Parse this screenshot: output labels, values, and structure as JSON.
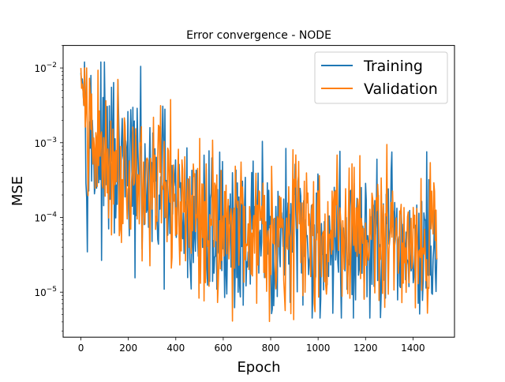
{
  "chart_data": {
    "type": "line",
    "title": "Error convergence - NODE",
    "xlabel": "Epoch",
    "ylabel": "MSE",
    "xlim": [
      -75,
      1575
    ],
    "ylim": [
      2.5e-06,
      0.02
    ],
    "yscale": "log",
    "xticks": [
      0,
      200,
      400,
      600,
      800,
      1000,
      1200,
      1400
    ],
    "xtick_labels": [
      "0",
      "200",
      "400",
      "600",
      "800",
      "1000",
      "1200",
      "1400"
    ],
    "yticks": [
      1e-05,
      0.0001,
      0.001,
      0.01
    ],
    "ytick_labels": [
      {
        "base": "10",
        "exp": "−5"
      },
      {
        "base": "10",
        "exp": "−4"
      },
      {
        "base": "10",
        "exp": "−3"
      },
      {
        "base": "10",
        "exp": "−2"
      }
    ],
    "grid": false,
    "legend_position": "top-right",
    "series": [
      {
        "name": "Training",
        "color": "#1f77b4",
        "trend": {
          "x": [
            0,
            10,
            20,
            30,
            50,
            100,
            150,
            200,
            250,
            300,
            350,
            400,
            450,
            500,
            600,
            700,
            800,
            900,
            1000,
            1100,
            1200,
            1300,
            1400,
            1500
          ],
          "y": [
            0.012,
            0.005,
            0.002,
            0.0012,
            0.0008,
            0.0006,
            0.0005,
            0.0004,
            0.0003,
            0.00022,
            0.00016,
            0.00012,
            9e-05,
            8e-05,
            7e-05,
            6e-05,
            5.5e-05,
            5e-05,
            4.5e-05,
            4.2e-05,
            4e-05,
            3.8e-05,
            3.6e-05,
            3.5e-05
          ]
        },
        "spread_decades": 0.55,
        "min": 4.5e-06,
        "max": 0.012
      },
      {
        "name": "Validation",
        "color": "#ff7f0e",
        "trend": {
          "x": [
            0,
            10,
            20,
            30,
            50,
            100,
            150,
            200,
            250,
            300,
            350,
            400,
            450,
            500,
            600,
            700,
            800,
            900,
            1000,
            1100,
            1200,
            1300,
            1400,
            1500
          ],
          "y": [
            0.01,
            0.004,
            0.0018,
            0.0012,
            0.0009,
            0.0007,
            0.0006,
            0.00045,
            0.00035,
            0.00026,
            0.00019,
            0.00015,
            0.00012,
            0.0001,
            9e-05,
            8e-05,
            7.5e-05,
            7e-05,
            6.5e-05,
            6e-05,
            5.8e-05,
            5.5e-05,
            5.2e-05,
            5e-05
          ]
        },
        "spread_decades": 0.5,
        "min": 4e-06,
        "max": 0.01
      }
    ]
  }
}
